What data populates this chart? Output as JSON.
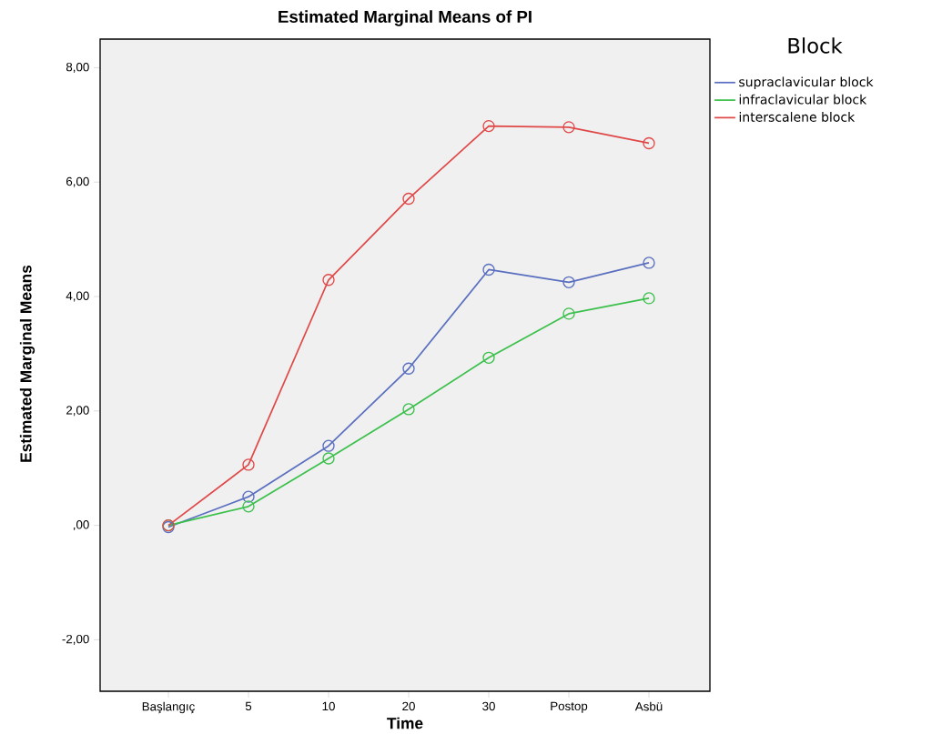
{
  "chart_data": {
    "type": "line",
    "title": "Estimated Marginal Means of PI",
    "xlabel": "Time",
    "ylabel": "Estimated Marginal Means",
    "legend_title": "Block",
    "categories": [
      "Başlangıç",
      "5",
      "10",
      "20",
      "30",
      "Postop",
      "Asbü"
    ],
    "series": [
      {
        "name": "supraclavicular block",
        "color": "#5a6fbf",
        "values": [
          -0.03,
          0.5,
          1.39,
          2.74,
          4.47,
          4.25,
          4.59
        ]
      },
      {
        "name": "infraclavicular block",
        "color": "#3cc04c",
        "values": [
          0.0,
          0.33,
          1.17,
          2.03,
          2.93,
          3.7,
          3.97
        ]
      },
      {
        "name": "interscalene block",
        "color": "#e04848",
        "values": [
          0.0,
          1.06,
          4.29,
          5.71,
          6.98,
          6.96,
          6.68
        ]
      }
    ],
    "ylim": [
      -2.9,
      8.5
    ],
    "yticks": [
      {
        "value": -2,
        "label": "-2,00"
      },
      {
        "value": 0,
        "label": ",00"
      },
      {
        "value": 2,
        "label": "2,00"
      },
      {
        "value": 4,
        "label": "4,00"
      },
      {
        "value": 6,
        "label": "6,00"
      },
      {
        "value": 8,
        "label": "8,00"
      }
    ],
    "legend": "right",
    "marker": "circle",
    "line_style": "solid"
  }
}
